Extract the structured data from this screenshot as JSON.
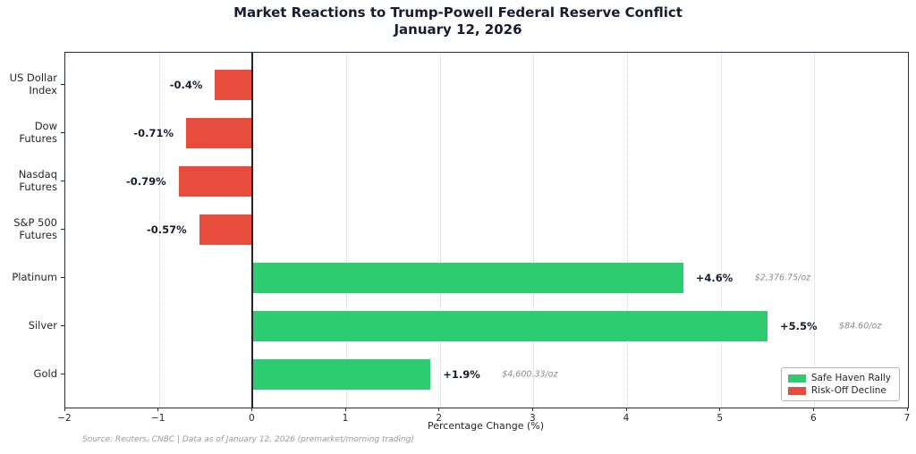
{
  "title": {
    "line1": "Market Reactions to Trump-Powell Federal Reserve Conflict",
    "line2": "January 12, 2026"
  },
  "chart_data": {
    "type": "bar",
    "orientation": "horizontal",
    "title": "Market Reactions to Trump-Powell Federal Reserve Conflict\nJanuary 12, 2026",
    "xlabel": "Percentage Change (%)",
    "xlim": [
      -2,
      7
    ],
    "xticks": [
      -2,
      -1,
      0,
      1,
      2,
      3,
      4,
      5,
      6,
      7
    ],
    "grid": true,
    "zero_line": true,
    "categories": [
      "US Dollar\nIndex",
      "Dow\nFutures",
      "Nasdaq\nFutures",
      "S&P 500\nFutures",
      "Platinum",
      "Silver",
      "Gold"
    ],
    "values": [
      -0.4,
      -0.71,
      -0.79,
      -0.57,
      4.6,
      5.5,
      1.9
    ],
    "value_labels": [
      "-0.4%",
      "-0.71%",
      "-0.79%",
      "-0.57%",
      "+4.6%",
      "+5.5%",
      "+1.9%"
    ],
    "price_labels": [
      "",
      "",
      "",
      "",
      "$2,376.75/oz",
      "$84.60/oz",
      "$4,600.33/oz"
    ],
    "bar_colors": {
      "positive": "#2ecc71",
      "negative": "#e74c3c"
    },
    "legend": {
      "position": "lower right",
      "items": [
        {
          "label": "Safe Haven Rally",
          "color": "#2ecc71"
        },
        {
          "label": "Risk-Off Decline",
          "color": "#e74c3c"
        }
      ]
    }
  },
  "source_note": "Source: Reuters, CNBC | Data as of January 12, 2026 (premarket/morning trading)",
  "colors": {
    "title_text": "#181c30",
    "value_label_text": "#181c30",
    "price_label_text": "#8a8a8a",
    "source_text": "#9a9a9a",
    "axis": "#2a2d3a",
    "grid": "#d4d4d4",
    "zero_line": "#22252e",
    "background": "#ffffff"
  }
}
